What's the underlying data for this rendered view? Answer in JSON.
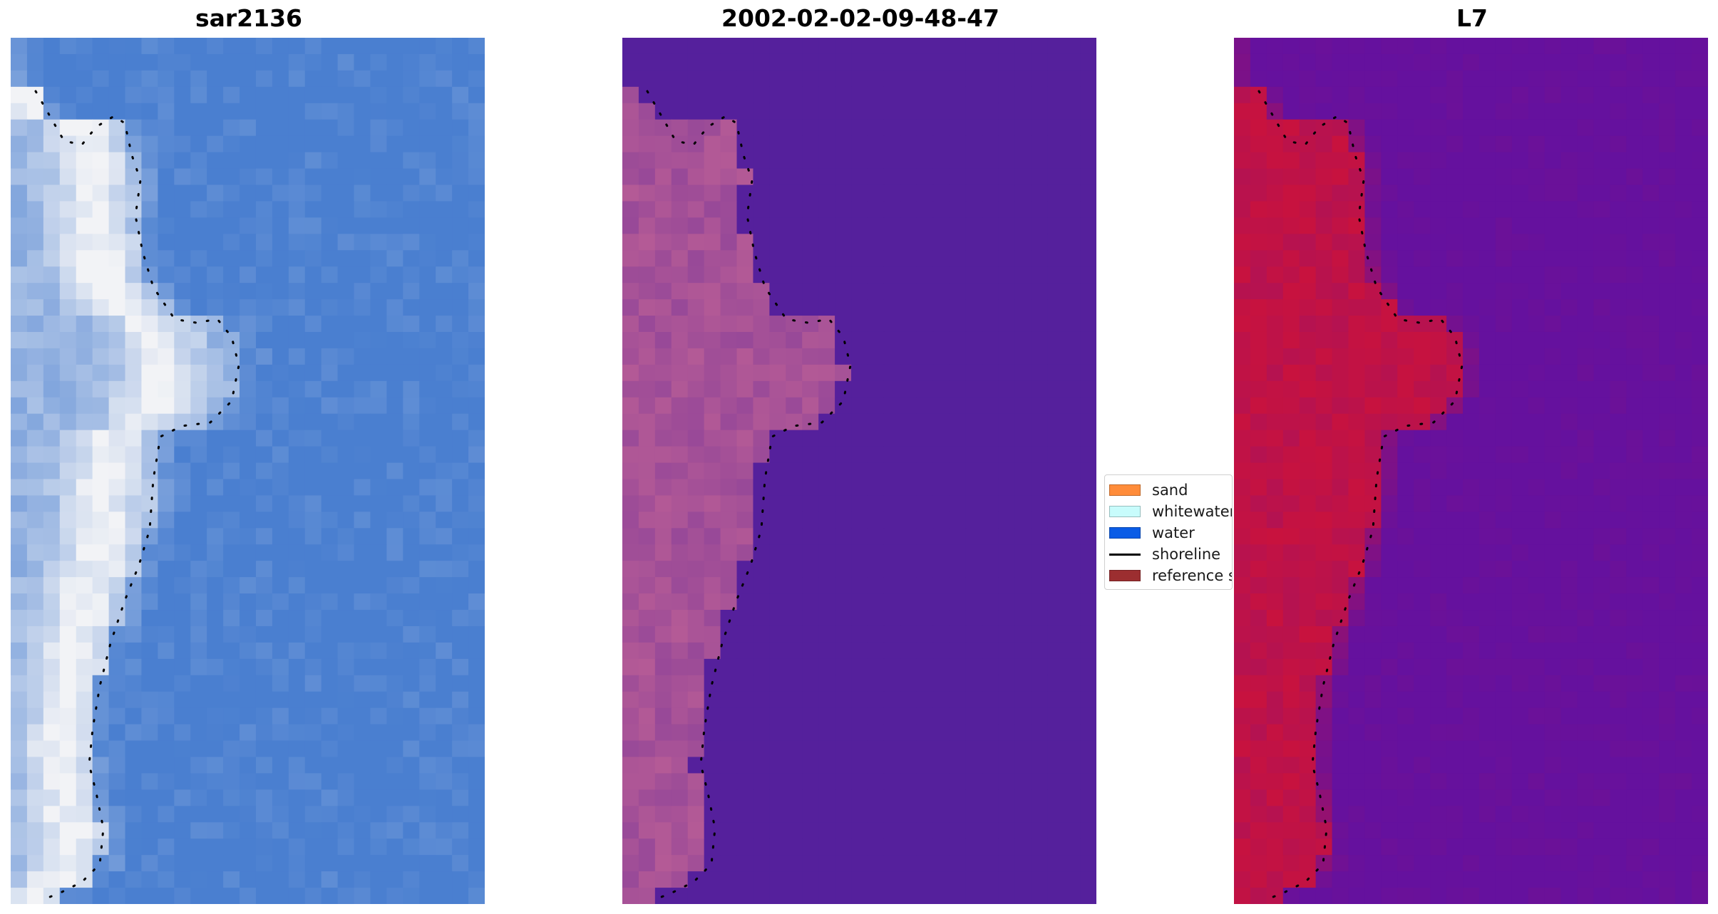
{
  "panels": [
    {
      "id": "rgb",
      "title": "sar2136"
    },
    {
      "id": "classified",
      "title": "2002-02-02-09-48-47"
    },
    {
      "id": "index",
      "title": "L7"
    }
  ],
  "legend": {
    "placement": "center-left of third panel, overlapping",
    "entries": [
      {
        "label": "sand",
        "color": "#ff8c3a",
        "kind": "patch"
      },
      {
        "label": "whitewater",
        "color": "#c8fcfc",
        "kind": "patch"
      },
      {
        "label": "water",
        "color": "#0a5ce6",
        "kind": "patch"
      },
      {
        "label": "shoreline",
        "color": "#000000",
        "kind": "line"
      },
      {
        "label": "reference shoreline",
        "color": "#9c2e30",
        "kind": "patch"
      }
    ]
  },
  "colors": {
    "rgb_water": "#4a7fd0",
    "rgb_sand_bright": "#f2f3f6",
    "class_water": "#55209c",
    "class_sand": "#b45a96",
    "index_water": "#65119e",
    "index_land": "#c8123e"
  }
}
